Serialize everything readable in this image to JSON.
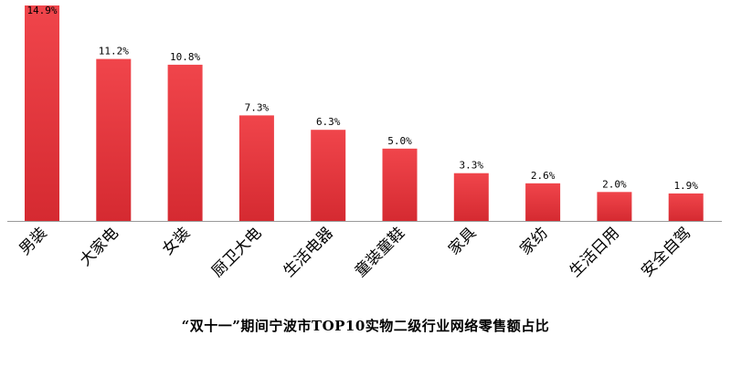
{
  "chart_data": {
    "type": "bar",
    "title": "“双十一”期间宁波市TOP10实物二级行业网络零售额占比",
    "categories": [
      "男装",
      "大家电",
      "女装",
      "厨卫大电",
      "生活电器",
      "童装童鞋",
      "家具",
      "家纺",
      "生活日用",
      "安全自驾"
    ],
    "values": [
      14.9,
      11.2,
      10.8,
      7.3,
      6.3,
      5.0,
      3.3,
      2.6,
      2.0,
      1.9
    ],
    "value_labels": [
      "14.9%",
      "11.2%",
      "10.8%",
      "7.3%",
      "6.3%",
      "5.0%",
      "3.3%",
      "2.6%",
      "2.0%",
      "1.9%"
    ],
    "xlabel": "",
    "ylabel": "",
    "ylim": [
      0,
      14.9
    ],
    "grid": false,
    "legend": "none",
    "colors": {
      "bar": "#e8353c",
      "bar_dark": "#d52a31",
      "axis": "#9a9a9a",
      "text": "#000000"
    }
  }
}
